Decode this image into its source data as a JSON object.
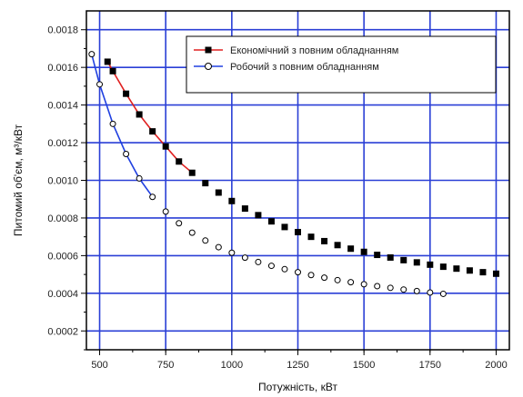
{
  "chart_data": {
    "type": "line",
    "xlabel": "Потужність, кВт",
    "ylabel": "Питомий об'єм, м³/кВт",
    "xlim": [
      450,
      2050
    ],
    "ylim": [
      0.0001,
      0.0019
    ],
    "x_ticks": [
      500,
      750,
      1000,
      1250,
      1500,
      1750,
      2000
    ],
    "x_tick_labels": [
      "500",
      "750",
      "1000",
      "1250",
      "1500",
      "1750",
      "2000"
    ],
    "y_ticks": [
      0.0002,
      0.0004,
      0.0006,
      0.0008,
      0.001,
      0.0012,
      0.0014,
      0.0016,
      0.0018
    ],
    "y_tick_labels": [
      "0.0002",
      "0.0004",
      "0.0006",
      "0.0008",
      "0.0010",
      "0.0012",
      "0.0014",
      "0.0016",
      "0.0018"
    ],
    "grid": true,
    "legend_position": "top-right",
    "colors": {
      "grid": "#2a3fd6",
      "series1_marker": "#000000",
      "series1_fit": "#e02020",
      "series2_fit": "#2040e0",
      "axis": "#000000"
    },
    "series": [
      {
        "name": "Економічний з повним обладнанням",
        "marker": "filled-square",
        "x": [
          530,
          550,
          600,
          650,
          700,
          750,
          800,
          850,
          900,
          950,
          1000,
          1050,
          1100,
          1150,
          1200,
          1250,
          1300,
          1350,
          1400,
          1450,
          1500,
          1550,
          1600,
          1650,
          1700,
          1750,
          1800,
          1850,
          1900,
          1950,
          2000
        ],
        "values": [
          0.00163,
          0.00158,
          0.00146,
          0.00135,
          0.00126,
          0.00118,
          0.0011,
          0.00104,
          0.000985,
          0.000935,
          0.00089,
          0.00085,
          0.000815,
          0.000782,
          0.000752,
          0.000725,
          0.0007,
          0.000677,
          0.000656,
          0.000637,
          0.00062,
          0.000604,
          0.00059,
          0.000576,
          0.000564,
          0.000552,
          0.000541,
          0.000531,
          0.000521,
          0.000512,
          0.000504
        ]
      },
      {
        "name": "Робочий з повним обладнанням",
        "marker": "open-circle",
        "x": [
          470,
          500,
          550,
          600,
          650,
          700,
          750,
          800,
          850,
          900,
          950,
          1000,
          1050,
          1100,
          1150,
          1200,
          1250,
          1300,
          1350,
          1400,
          1450,
          1500,
          1550,
          1600,
          1650,
          1700,
          1750,
          1800
        ],
        "values": [
          0.00167,
          0.00151,
          0.0013,
          0.00114,
          0.00101,
          0.000912,
          0.000834,
          0.000772,
          0.000722,
          0.00068,
          0.000645,
          0.000615,
          0.000589,
          0.000566,
          0.000546,
          0.000528,
          0.000512,
          0.000497,
          0.000483,
          0.00047,
          0.000459,
          0.000448,
          0.000438,
          0.000429,
          0.00042,
          0.000412,
          0.000404,
          0.000397
        ]
      }
    ]
  }
}
